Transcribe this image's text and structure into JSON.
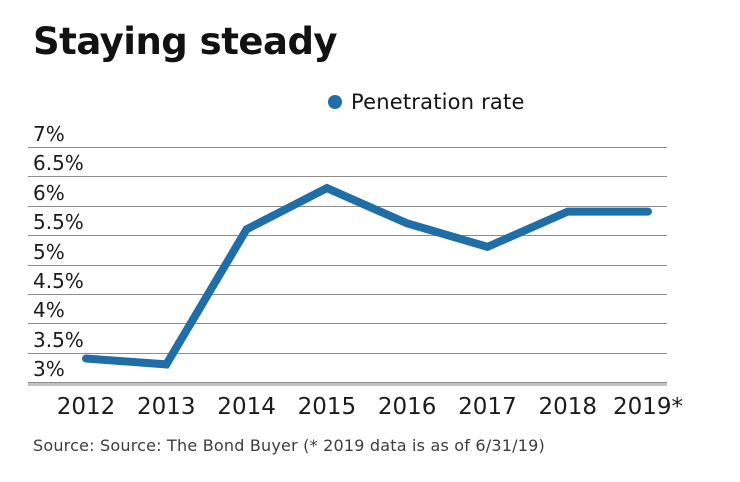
{
  "title": "Staying steady",
  "legend": {
    "label": "Penetration rate",
    "marker_color": "#1f6ea7"
  },
  "source": "Source: Source: The Bond Buyer (* 2019 data is as of 6/31/19)",
  "colors": {
    "line": "#1f6ea7",
    "gridline": "#8d8d8d",
    "axis": "#c2c2c2"
  },
  "chart_data": {
    "type": "line",
    "title": "Staying steady",
    "categories": [
      "2012",
      "2013",
      "2014",
      "2015",
      "2016",
      "2017",
      "2018",
      "2019*"
    ],
    "series": [
      {
        "name": "Penetration rate",
        "color": "#1f6ea7",
        "values": [
          3.4,
          3.3,
          5.6,
          6.3,
          5.7,
          5.3,
          5.9,
          5.9
        ]
      }
    ],
    "xlabel": "",
    "ylabel": "",
    "ylim": [
      3,
      7
    ],
    "y_ticks": [
      {
        "label": "7%",
        "value": 7
      },
      {
        "label": "6.5%",
        "value": 6.5
      },
      {
        "label": "6%",
        "value": 6
      },
      {
        "label": "5.5%",
        "value": 5.5
      },
      {
        "label": "5%",
        "value": 5
      },
      {
        "label": "4.5%",
        "value": 4.5
      },
      {
        "label": "4%",
        "value": 4
      },
      {
        "label": "3.5%",
        "value": 3.5
      },
      {
        "label": "3%",
        "value": 3
      }
    ],
    "grid": "horizontal",
    "legend_position": "top-center",
    "annotation": "* 2019 data is as of 6/31/19"
  }
}
